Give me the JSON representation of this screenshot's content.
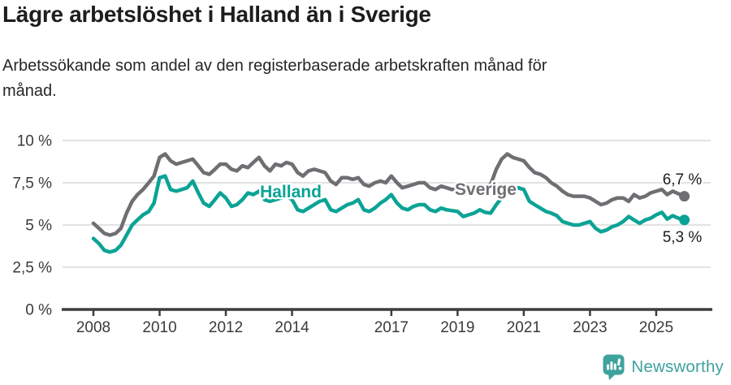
{
  "header": {
    "title": "Lägre arbetslöshet i Halland än i Sverige",
    "subtitle": "Arbetssökande som andel av den registerbaserade arbetskraften månad för månad."
  },
  "colors": {
    "halland": "#0BA396",
    "sverige": "#6F6F73",
    "grid": "#D9D9D9",
    "axis": "#3D3D3D",
    "tick_text": "#3A3A3A",
    "title_text": "#1D1D1B",
    "brand": "#3EA29D"
  },
  "chart_data": {
    "type": "line",
    "unit": "%",
    "grid": true,
    "legend_position": "inline-labels-on-lines",
    "y_axis": {
      "range": [
        0,
        10
      ],
      "ticks": [
        {
          "value": 0,
          "label": "0 %"
        },
        {
          "value": 2.5,
          "label": "2,5 %"
        },
        {
          "value": 5,
          "label": "5 %"
        },
        {
          "value": 7.5,
          "label": "7,5 %"
        },
        {
          "value": 10,
          "label": "10 %"
        }
      ]
    },
    "x_axis": {
      "range": [
        2008,
        2025.85
      ],
      "ticks": [
        {
          "value": 2008,
          "label": "2008"
        },
        {
          "value": 2010,
          "label": "2010"
        },
        {
          "value": 2012,
          "label": "2012"
        },
        {
          "value": 2014,
          "label": "2014"
        },
        {
          "value": 2017,
          "label": "2017"
        },
        {
          "value": 2019,
          "label": "2019"
        },
        {
          "value": 2021,
          "label": "2021"
        },
        {
          "value": 2023,
          "label": "2023"
        },
        {
          "value": 2025,
          "label": "2025"
        }
      ]
    },
    "x": [
      2008.0,
      2008.17,
      2008.33,
      2008.5,
      2008.67,
      2008.83,
      2009.0,
      2009.17,
      2009.33,
      2009.5,
      2009.67,
      2009.83,
      2010.0,
      2010.17,
      2010.33,
      2010.5,
      2010.67,
      2010.83,
      2011.0,
      2011.17,
      2011.33,
      2011.5,
      2011.67,
      2011.83,
      2012.0,
      2012.17,
      2012.33,
      2012.5,
      2012.67,
      2012.83,
      2013.0,
      2013.17,
      2013.33,
      2013.5,
      2013.67,
      2013.83,
      2014.0,
      2014.17,
      2014.33,
      2014.5,
      2014.67,
      2014.83,
      2015.0,
      2015.17,
      2015.33,
      2015.5,
      2015.67,
      2015.83,
      2016.0,
      2016.17,
      2016.33,
      2016.5,
      2016.67,
      2016.83,
      2017.0,
      2017.17,
      2017.33,
      2017.5,
      2017.67,
      2017.83,
      2018.0,
      2018.17,
      2018.33,
      2018.5,
      2018.67,
      2018.83,
      2019.0,
      2019.17,
      2019.33,
      2019.5,
      2019.67,
      2019.83,
      2020.0,
      2020.17,
      2020.33,
      2020.5,
      2020.67,
      2020.83,
      2021.0,
      2021.17,
      2021.33,
      2021.5,
      2021.67,
      2021.83,
      2022.0,
      2022.17,
      2022.33,
      2022.5,
      2022.67,
      2022.83,
      2023.0,
      2023.17,
      2023.33,
      2023.5,
      2023.67,
      2023.83,
      2024.0,
      2024.17,
      2024.33,
      2024.5,
      2024.67,
      2024.83,
      2025.0,
      2025.17,
      2025.33,
      2025.5,
      2025.67,
      2025.85
    ],
    "series": [
      {
        "name": "Sverige",
        "color": "#6F6F73",
        "end_label": "6,7 %",
        "end_value": 6.7,
        "values": [
          5.1,
          4.8,
          4.5,
          4.4,
          4.5,
          4.8,
          5.7,
          6.4,
          6.8,
          7.1,
          7.5,
          7.9,
          9.0,
          9.2,
          8.8,
          8.6,
          8.7,
          8.8,
          8.9,
          8.5,
          8.1,
          8.0,
          8.3,
          8.6,
          8.6,
          8.3,
          8.2,
          8.5,
          8.4,
          8.7,
          9.0,
          8.5,
          8.2,
          8.6,
          8.5,
          8.7,
          8.6,
          8.1,
          7.9,
          8.2,
          8.3,
          8.2,
          8.1,
          7.6,
          7.4,
          7.8,
          7.8,
          7.7,
          7.8,
          7.4,
          7.3,
          7.5,
          7.6,
          7.5,
          7.9,
          7.5,
          7.2,
          7.3,
          7.4,
          7.5,
          7.5,
          7.2,
          7.1,
          7.3,
          7.2,
          7.1,
          7.1,
          6.9,
          7.0,
          7.0,
          7.1,
          7.3,
          7.4,
          8.3,
          8.9,
          9.2,
          9.0,
          8.9,
          8.8,
          8.4,
          8.1,
          8.0,
          7.8,
          7.5,
          7.3,
          7.0,
          6.8,
          6.7,
          6.7,
          6.7,
          6.6,
          6.4,
          6.2,
          6.3,
          6.5,
          6.6,
          6.6,
          6.4,
          6.8,
          6.6,
          6.7,
          6.9,
          7.0,
          7.1,
          6.8,
          7.0,
          6.85,
          6.7
        ]
      },
      {
        "name": "Halland",
        "color": "#0BA396",
        "end_label": "5,3 %",
        "end_value": 5.3,
        "values": [
          4.2,
          3.9,
          3.5,
          3.4,
          3.5,
          3.8,
          4.4,
          5.0,
          5.3,
          5.6,
          5.8,
          6.3,
          7.8,
          7.9,
          7.1,
          7.0,
          7.1,
          7.2,
          7.6,
          6.9,
          6.3,
          6.1,
          6.5,
          6.9,
          6.6,
          6.1,
          6.2,
          6.5,
          6.9,
          6.8,
          7.0,
          6.5,
          6.4,
          6.5,
          6.6,
          6.7,
          6.5,
          5.9,
          5.8,
          6.0,
          6.2,
          6.4,
          6.5,
          5.9,
          5.8,
          6.0,
          6.2,
          6.3,
          6.5,
          5.9,
          5.8,
          6.0,
          6.3,
          6.5,
          6.8,
          6.3,
          6.0,
          5.9,
          6.1,
          6.2,
          6.2,
          5.9,
          5.8,
          6.0,
          5.9,
          5.85,
          5.8,
          5.5,
          5.6,
          5.7,
          5.9,
          5.75,
          5.7,
          6.2,
          6.6,
          6.9,
          7.0,
          7.2,
          7.1,
          6.4,
          6.2,
          6.0,
          5.8,
          5.7,
          5.55,
          5.2,
          5.1,
          5.0,
          5.0,
          5.1,
          5.2,
          4.8,
          4.6,
          4.7,
          4.9,
          5.0,
          5.2,
          5.5,
          5.3,
          5.1,
          5.3,
          5.4,
          5.6,
          5.75,
          5.35,
          5.55,
          5.4,
          5.3
        ]
      }
    ]
  },
  "logo": {
    "brand": "Newsworthy"
  }
}
